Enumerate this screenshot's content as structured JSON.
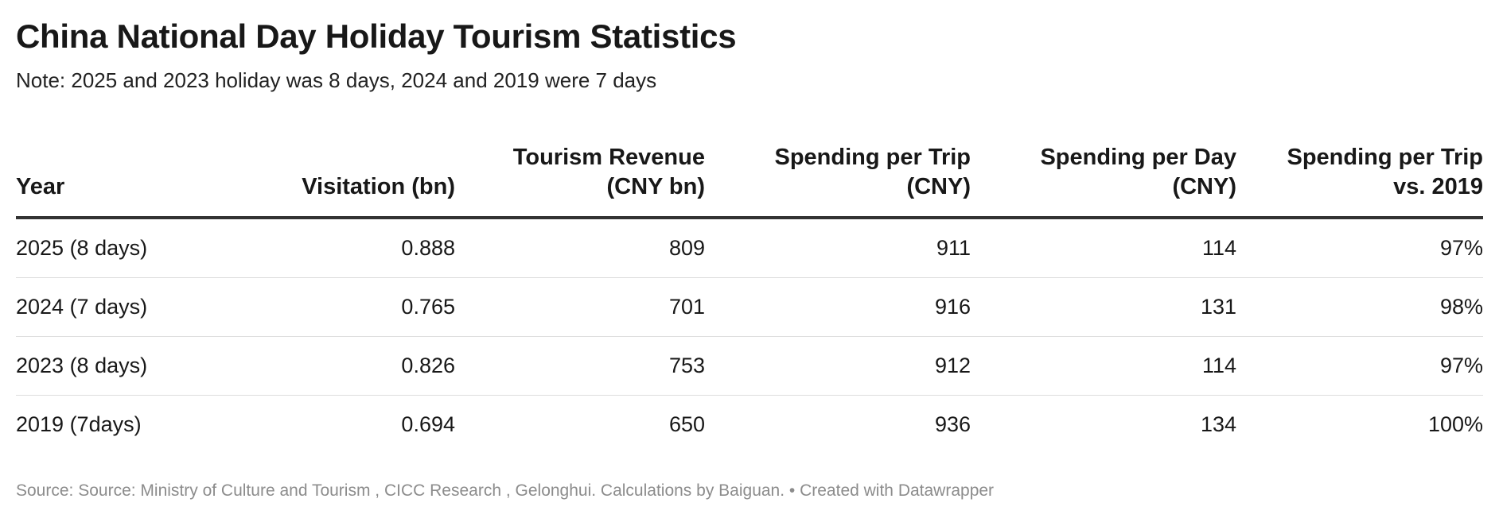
{
  "title": "China National Day Holiday Tourism Statistics",
  "subtitle": "Note: 2025 and 2023 holiday was 8 days, 2024 and 2019 were 7 days",
  "footer": {
    "source": "Source: Source: Ministry of Culture and Tourism , CICC Research , Gelonghui. Calculations by Baiguan.",
    "separator": " • ",
    "credit": "Created with Datawrapper"
  },
  "chart_data": {
    "type": "table",
    "title": "China National Day Holiday Tourism Statistics",
    "columns": [
      {
        "label_line1": "",
        "label_line2": "Year"
      },
      {
        "label_line1": "",
        "label_line2": "Visitation (bn)"
      },
      {
        "label_line1": "Tourism Revenue",
        "label_line2": "(CNY bn)"
      },
      {
        "label_line1": "Spending per Trip",
        "label_line2": "(CNY)"
      },
      {
        "label_line1": "Spending per Day",
        "label_line2": "(CNY)"
      },
      {
        "label_line1": "Spending per Trip",
        "label_line2": "vs. 2019"
      }
    ],
    "rows": [
      [
        "2025 (8 days)",
        "0.888",
        "809",
        "911",
        "114",
        "97%"
      ],
      [
        "2024 (7 days)",
        "0.765",
        "701",
        "916",
        "131",
        "98%"
      ],
      [
        "2023 (8 days)",
        "0.826",
        "753",
        "912",
        "114",
        "97%"
      ],
      [
        "2019 (7days)",
        "0.694",
        "650",
        "936",
        "134",
        "100%"
      ]
    ]
  }
}
